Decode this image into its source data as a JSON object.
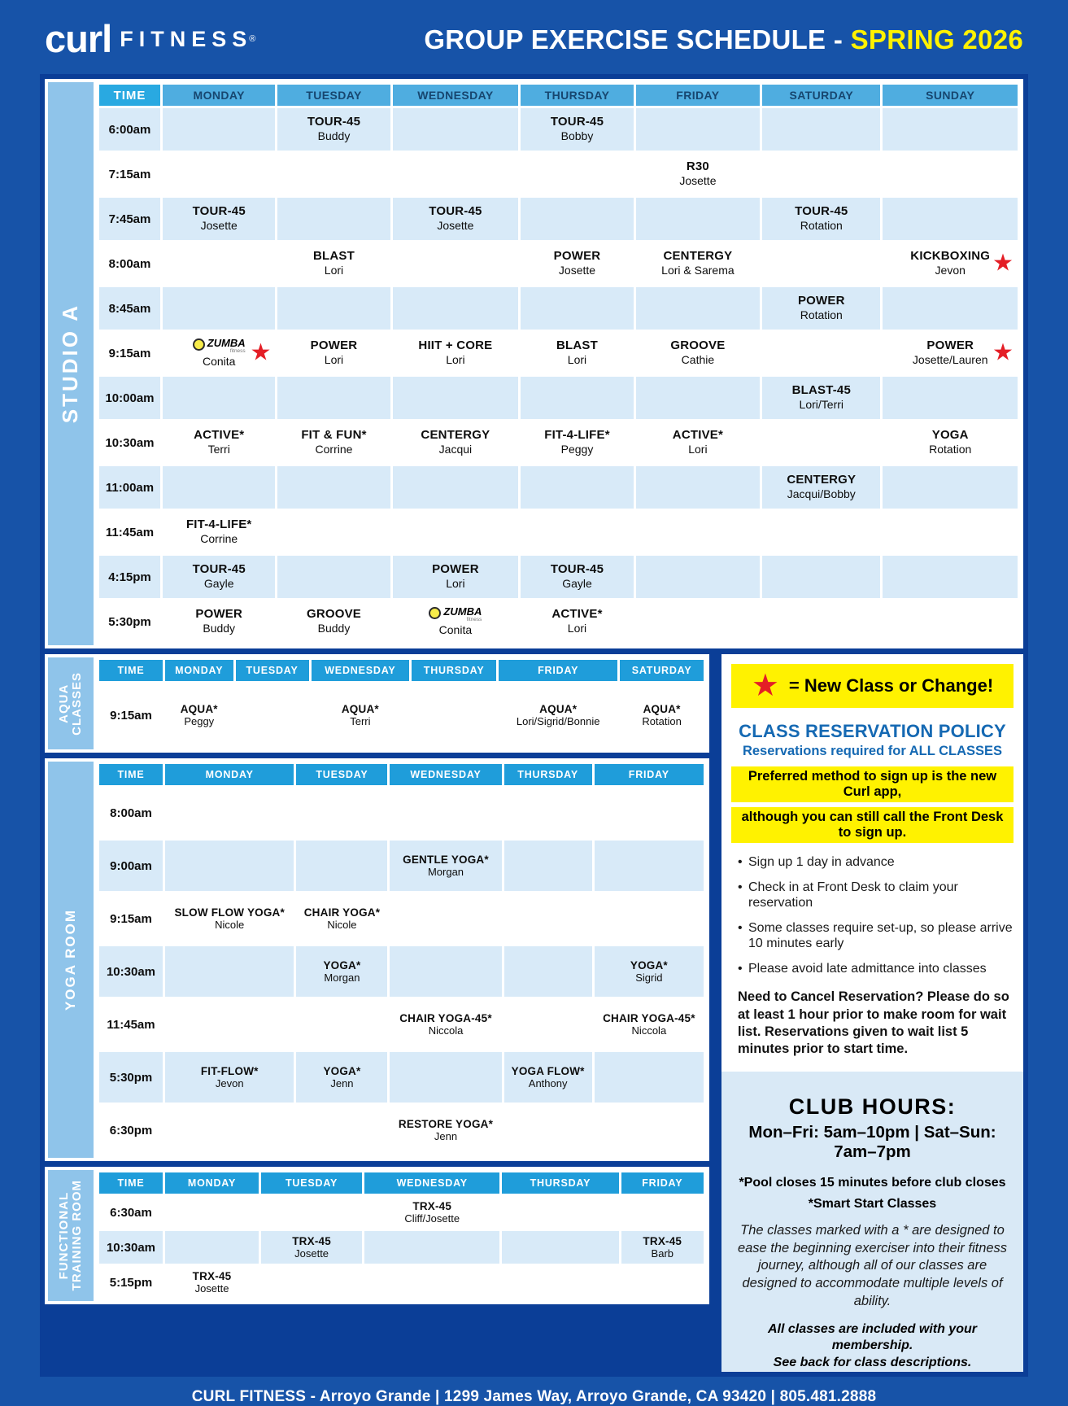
{
  "colors": {
    "page_blue": "#1753A8",
    "frame_blue": "#0B3E97",
    "accent_yellow": "#FFF200",
    "star_red": "#E41E26",
    "policy_blue": "#1569B3",
    "row_light": "#D8EAF8",
    "sidebar_blue": "#8FC4EA",
    "header_blue": "#1F9DDA"
  },
  "header": {
    "logo_primary": "curl",
    "logo_secondary": "FITNESS",
    "logo_reg": "®",
    "title_white": "GROUP EXERCISE SCHEDULE -",
    "title_yellow": "SPRING 2026"
  },
  "zumba_logo": {
    "name": "ZUMBA",
    "sub": "fitness"
  },
  "legend_star": "★",
  "studio_a": {
    "label": "STUDIO A",
    "headers": [
      "TIME",
      "MONDAY",
      "TUESDAY",
      "WEDNESDAY",
      "THURSDAY",
      "FRIDAY",
      "SATURDAY",
      "SUNDAY"
    ],
    "rows": [
      {
        "time": "6:00am",
        "cells": [
          null,
          {
            "class": "TOUR-45",
            "instructor": "Buddy"
          },
          null,
          {
            "class": "TOUR-45",
            "instructor": "Bobby"
          },
          null,
          null,
          null
        ]
      },
      {
        "time": "7:15am",
        "cells": [
          null,
          null,
          null,
          null,
          {
            "class": "R30",
            "instructor": "Josette"
          },
          null,
          null
        ]
      },
      {
        "time": "7:45am",
        "cells": [
          {
            "class": "TOUR-45",
            "instructor": "Josette"
          },
          null,
          {
            "class": "TOUR-45",
            "instructor": "Josette"
          },
          null,
          null,
          {
            "class": "TOUR-45",
            "instructor": "Rotation"
          },
          null
        ]
      },
      {
        "time": "8:00am",
        "cells": [
          null,
          {
            "class": "BLAST",
            "instructor": "Lori"
          },
          null,
          {
            "class": "POWER",
            "instructor": "Josette"
          },
          {
            "class": "CENTERGY",
            "instructor": "Lori & Sarema"
          },
          null,
          {
            "class": "KICKBOXING",
            "instructor": "Jevon",
            "star": true
          }
        ]
      },
      {
        "time": "8:45am",
        "cells": [
          null,
          null,
          null,
          null,
          null,
          {
            "class": "POWER",
            "instructor": "Rotation"
          },
          null
        ]
      },
      {
        "time": "9:15am",
        "cells": [
          {
            "zumba": true,
            "instructor": "Conita",
            "star": true
          },
          {
            "class": "POWER",
            "instructor": "Lori"
          },
          {
            "class": "HIIT + CORE",
            "instructor": "Lori"
          },
          {
            "class": "BLAST",
            "instructor": "Lori"
          },
          {
            "class": "GROOVE",
            "instructor": "Cathie"
          },
          null,
          {
            "class": "POWER",
            "instructor": "Josette/​Lauren",
            "star": true
          }
        ]
      },
      {
        "time": "10:00am",
        "cells": [
          null,
          null,
          null,
          null,
          null,
          {
            "class": "BLAST-45",
            "instructor": "Lori/Terri"
          },
          null
        ]
      },
      {
        "time": "10:30am",
        "cells": [
          {
            "class": "ACTIVE*",
            "instructor": "Terri"
          },
          {
            "class": "FIT & FUN*",
            "instructor": "Corrine"
          },
          {
            "class": "CENTERGY",
            "instructor": "Jacqui"
          },
          {
            "class": "FIT-4-LIFE*",
            "instructor": "Peggy"
          },
          {
            "class": "ACTIVE*",
            "instructor": "Lori"
          },
          null,
          {
            "class": "YOGA",
            "instructor": "Rotation"
          }
        ]
      },
      {
        "time": "11:00am",
        "cells": [
          null,
          null,
          null,
          null,
          null,
          {
            "class": "CENTERGY",
            "instructor": "Jacqui/Bobby"
          },
          null
        ]
      },
      {
        "time": "11:45am",
        "cells": [
          {
            "class": "FIT-4-LIFE*",
            "instructor": "Corrine"
          },
          null,
          null,
          null,
          null,
          null,
          null
        ]
      },
      {
        "time": "4:15pm",
        "cells": [
          {
            "class": "TOUR-45",
            "instructor": "Gayle"
          },
          null,
          {
            "class": "POWER",
            "instructor": "Lori"
          },
          {
            "class": "TOUR-45",
            "instructor": "Gayle"
          },
          null,
          null,
          null
        ]
      },
      {
        "time": "5:30pm",
        "cells": [
          {
            "class": "POWER",
            "instructor": "Buddy"
          },
          {
            "class": "GROOVE",
            "instructor": "Buddy"
          },
          {
            "zumba": true,
            "instructor": "Conita"
          },
          {
            "class": "ACTIVE*",
            "instructor": "Lori"
          },
          null,
          null,
          null
        ]
      }
    ]
  },
  "aqua": {
    "label": "AQUA\nCLASSES",
    "headers": [
      "TIME",
      "MONDAY",
      "TUESDAY",
      "WEDNESDAY",
      "THURSDAY",
      "FRIDAY",
      "SATURDAY"
    ],
    "rows": [
      {
        "time": "9:15am",
        "cells": [
          {
            "class": "AQUA*",
            "instructor": "Peggy"
          },
          null,
          {
            "class": "AQUA*",
            "instructor": "Terri"
          },
          null,
          {
            "class": "AQUA*",
            "instructor": "Lori/Sigrid/​Bonnie"
          },
          {
            "class": "AQUA*",
            "instructor": "Rotation"
          }
        ]
      }
    ]
  },
  "yoga": {
    "label": "YOGA ROOM",
    "headers": [
      "TIME",
      "MONDAY",
      "TUESDAY",
      "WEDNESDAY",
      "THURSDAY",
      "FRIDAY"
    ],
    "rows": [
      {
        "time": "8:00am",
        "cells": [
          null,
          null,
          null,
          null,
          null
        ]
      },
      {
        "time": "9:00am",
        "cells": [
          null,
          null,
          {
            "class": "GENTLE YOGA*",
            "instructor": "Morgan"
          },
          null,
          null
        ]
      },
      {
        "time": "9:15am",
        "cells": [
          {
            "class": "SLOW FLOW YOGA*",
            "instructor": "Nicole"
          },
          {
            "class": "CHAIR YOGA*",
            "instructor": "Nicole"
          },
          null,
          null,
          null
        ]
      },
      {
        "time": "10:30am",
        "cells": [
          null,
          {
            "class": "YOGA*",
            "instructor": "Morgan"
          },
          null,
          null,
          {
            "class": "YOGA*",
            "instructor": "Sigrid"
          }
        ]
      },
      {
        "time": "11:45am",
        "cells": [
          null,
          null,
          {
            "class": "CHAIR YOGA-45*",
            "instructor": "Niccola"
          },
          null,
          {
            "class": "CHAIR YOGA-45*",
            "instructor": "Niccola"
          }
        ]
      },
      {
        "time": "5:30pm",
        "cells": [
          {
            "class": "FIT-FLOW*",
            "instructor": "Jevon"
          },
          {
            "class": "YOGA*",
            "instructor": "Jenn"
          },
          null,
          {
            "class": "YOGA FLOW*",
            "instructor": "Anthony"
          },
          null
        ]
      },
      {
        "time": "6:30pm",
        "cells": [
          null,
          null,
          {
            "class": "RESTORE YOGA*",
            "instructor": "Jenn"
          },
          null,
          null
        ]
      }
    ]
  },
  "ftr": {
    "label": "FUNCTIONAL\nTRAINING ROOM",
    "headers": [
      "TIME",
      "MONDAY",
      "TUESDAY",
      "WEDNESDAY",
      "THURSDAY",
      "FRIDAY"
    ],
    "rows": [
      {
        "time": "6:30am",
        "cells": [
          null,
          null,
          {
            "class": "TRX-45",
            "instructor": "Cliff/Josette"
          },
          null,
          null
        ]
      },
      {
        "time": "10:30am",
        "cells": [
          null,
          {
            "class": "TRX-45",
            "instructor": "Josette"
          },
          null,
          null,
          {
            "class": "TRX-45",
            "instructor": "Barb"
          }
        ]
      },
      {
        "time": "5:15pm",
        "cells": [
          {
            "class": "TRX-45",
            "instructor": "Josette"
          },
          null,
          null,
          null,
          null
        ]
      }
    ]
  },
  "panel": {
    "legend_text": "= New Class or Change!",
    "policy_title": "CLASS RESERVATION POLICY",
    "policy_subtitle": "Reservations required for ALL CLASSES",
    "highlight1": "Preferred method to sign up is the new Curl app,",
    "highlight2": "although you can still call the Front Desk to sign up.",
    "bullets": [
      "Sign up 1 day in advance",
      "Check in at Front Desk to claim your reservation",
      "Some classes require set-up, so please arrive 10 minutes early",
      "Please avoid late admittance into classes"
    ],
    "cancel_note": "Need to Cancel Reservation? Please do so at least 1 hour prior to make room for wait list. Reservations given to wait list 5 minutes prior to start time.",
    "club_hours_title": "CLUB HOURS:",
    "club_hours": "Mon–Fri: 5am–10pm | Sat–Sun: 7am–7pm",
    "pool_note": "*Pool closes 15 minutes before club closes",
    "smart_start": "*Smart Start Classes",
    "smart_desc": "The classes marked with a * are designed to ease the beginning exerciser into their fitness journey, although all of our classes are designed to accommodate multiple levels of ability.",
    "membership_note1": "All classes are included with your membership.",
    "membership_note2": "See back for class descriptions."
  },
  "footer": "CURL FITNESS - Arroyo Grande | 1299 James Way, Arroyo Grande, CA 93420 | 805.481.2888"
}
